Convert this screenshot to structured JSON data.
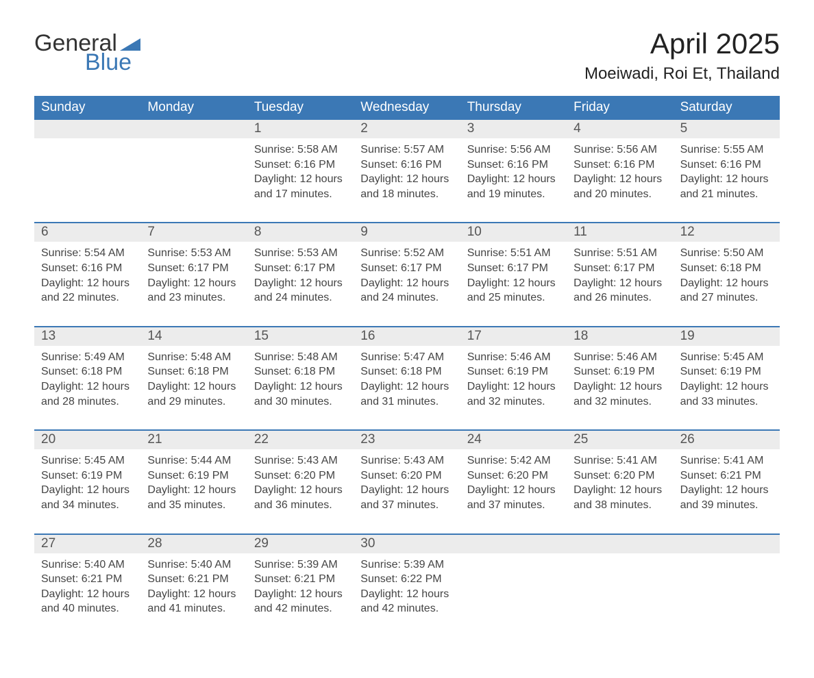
{
  "logo": {
    "line1": "General",
    "line2": "Blue",
    "brand_color": "#3b78b5"
  },
  "title": {
    "month": "April 2025",
    "location": "Moeiwadi, Roi Et, Thailand"
  },
  "colors": {
    "header_bg": "#3b78b5",
    "daynum_bg": "#ececec",
    "row_border": "#3b78b5",
    "text": "#333333",
    "background": "#ffffff"
  },
  "typography": {
    "title_fontsize": 42,
    "location_fontsize": 24,
    "header_fontsize": 19,
    "daynum_fontsize": 19,
    "body_fontsize": 16
  },
  "layout": {
    "columns": 7,
    "rows": 5
  },
  "weekdays": [
    "Sunday",
    "Monday",
    "Tuesday",
    "Wednesday",
    "Thursday",
    "Friday",
    "Saturday"
  ],
  "labels": {
    "sunrise": "Sunrise:",
    "sunset": "Sunset:",
    "daylight": "Daylight:"
  },
  "weeks": [
    [
      {
        "empty": true
      },
      {
        "empty": true
      },
      {
        "day": "1",
        "sunrise": "5:58 AM",
        "sunset": "6:16 PM",
        "daylight": "12 hours and 17 minutes."
      },
      {
        "day": "2",
        "sunrise": "5:57 AM",
        "sunset": "6:16 PM",
        "daylight": "12 hours and 18 minutes."
      },
      {
        "day": "3",
        "sunrise": "5:56 AM",
        "sunset": "6:16 PM",
        "daylight": "12 hours and 19 minutes."
      },
      {
        "day": "4",
        "sunrise": "5:56 AM",
        "sunset": "6:16 PM",
        "daylight": "12 hours and 20 minutes."
      },
      {
        "day": "5",
        "sunrise": "5:55 AM",
        "sunset": "6:16 PM",
        "daylight": "12 hours and 21 minutes."
      }
    ],
    [
      {
        "day": "6",
        "sunrise": "5:54 AM",
        "sunset": "6:16 PM",
        "daylight": "12 hours and 22 minutes."
      },
      {
        "day": "7",
        "sunrise": "5:53 AM",
        "sunset": "6:17 PM",
        "daylight": "12 hours and 23 minutes."
      },
      {
        "day": "8",
        "sunrise": "5:53 AM",
        "sunset": "6:17 PM",
        "daylight": "12 hours and 24 minutes."
      },
      {
        "day": "9",
        "sunrise": "5:52 AM",
        "sunset": "6:17 PM",
        "daylight": "12 hours and 24 minutes."
      },
      {
        "day": "10",
        "sunrise": "5:51 AM",
        "sunset": "6:17 PM",
        "daylight": "12 hours and 25 minutes."
      },
      {
        "day": "11",
        "sunrise": "5:51 AM",
        "sunset": "6:17 PM",
        "daylight": "12 hours and 26 minutes."
      },
      {
        "day": "12",
        "sunrise": "5:50 AM",
        "sunset": "6:18 PM",
        "daylight": "12 hours and 27 minutes."
      }
    ],
    [
      {
        "day": "13",
        "sunrise": "5:49 AM",
        "sunset": "6:18 PM",
        "daylight": "12 hours and 28 minutes."
      },
      {
        "day": "14",
        "sunrise": "5:48 AM",
        "sunset": "6:18 PM",
        "daylight": "12 hours and 29 minutes."
      },
      {
        "day": "15",
        "sunrise": "5:48 AM",
        "sunset": "6:18 PM",
        "daylight": "12 hours and 30 minutes."
      },
      {
        "day": "16",
        "sunrise": "5:47 AM",
        "sunset": "6:18 PM",
        "daylight": "12 hours and 31 minutes."
      },
      {
        "day": "17",
        "sunrise": "5:46 AM",
        "sunset": "6:19 PM",
        "daylight": "12 hours and 32 minutes."
      },
      {
        "day": "18",
        "sunrise": "5:46 AM",
        "sunset": "6:19 PM",
        "daylight": "12 hours and 32 minutes."
      },
      {
        "day": "19",
        "sunrise": "5:45 AM",
        "sunset": "6:19 PM",
        "daylight": "12 hours and 33 minutes."
      }
    ],
    [
      {
        "day": "20",
        "sunrise": "5:45 AM",
        "sunset": "6:19 PM",
        "daylight": "12 hours and 34 minutes."
      },
      {
        "day": "21",
        "sunrise": "5:44 AM",
        "sunset": "6:19 PM",
        "daylight": "12 hours and 35 minutes."
      },
      {
        "day": "22",
        "sunrise": "5:43 AM",
        "sunset": "6:20 PM",
        "daylight": "12 hours and 36 minutes."
      },
      {
        "day": "23",
        "sunrise": "5:43 AM",
        "sunset": "6:20 PM",
        "daylight": "12 hours and 37 minutes."
      },
      {
        "day": "24",
        "sunrise": "5:42 AM",
        "sunset": "6:20 PM",
        "daylight": "12 hours and 37 minutes."
      },
      {
        "day": "25",
        "sunrise": "5:41 AM",
        "sunset": "6:20 PM",
        "daylight": "12 hours and 38 minutes."
      },
      {
        "day": "26",
        "sunrise": "5:41 AM",
        "sunset": "6:21 PM",
        "daylight": "12 hours and 39 minutes."
      }
    ],
    [
      {
        "day": "27",
        "sunrise": "5:40 AM",
        "sunset": "6:21 PM",
        "daylight": "12 hours and 40 minutes."
      },
      {
        "day": "28",
        "sunrise": "5:40 AM",
        "sunset": "6:21 PM",
        "daylight": "12 hours and 41 minutes."
      },
      {
        "day": "29",
        "sunrise": "5:39 AM",
        "sunset": "6:21 PM",
        "daylight": "12 hours and 42 minutes."
      },
      {
        "day": "30",
        "sunrise": "5:39 AM",
        "sunset": "6:22 PM",
        "daylight": "12 hours and 42 minutes."
      },
      {
        "empty": true
      },
      {
        "empty": true
      },
      {
        "empty": true
      }
    ]
  ]
}
